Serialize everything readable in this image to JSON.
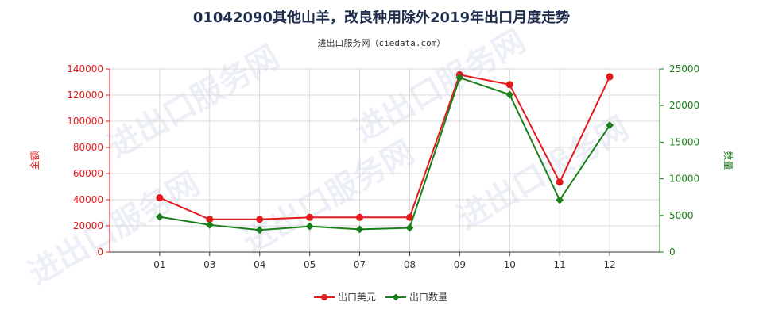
{
  "header": {
    "title": "01042090其他山羊，改良种用除外2019年出口月度走势",
    "subtitle": "进出口服务网（ciedata.com）"
  },
  "colors": {
    "value_series": "#e31a1c",
    "quantity_series": "#1a7f1a",
    "title": "#1f2d4d"
  },
  "chart_data": {
    "type": "line",
    "categories": [
      "01",
      "03",
      "04",
      "05",
      "07",
      "08",
      "09",
      "10",
      "11",
      "12"
    ],
    "series": [
      {
        "name": "出口美元",
        "axis": "left",
        "values": [
          41500,
          25000,
          25000,
          26500,
          26500,
          26500,
          135500,
          128000,
          53500,
          134000
        ]
      },
      {
        "name": "出口数量",
        "axis": "right",
        "values": [
          4800,
          3700,
          3000,
          3500,
          3100,
          3300,
          23800,
          21500,
          7100,
          17300
        ]
      }
    ],
    "ylabel_left": "金额",
    "ylabel_right": "数量",
    "ylim_left": [
      0,
      140000
    ],
    "ylim_right": [
      0,
      25000
    ],
    "yticks_left": [
      "0",
      "20000",
      "40000",
      "60000",
      "80000",
      "100000",
      "120000",
      "140000"
    ],
    "yticks_right": [
      "0",
      "5000",
      "10000",
      "15000",
      "20000",
      "25000"
    ],
    "grid": true,
    "legend_position": "bottom-center"
  },
  "watermark": "进出口服务网"
}
